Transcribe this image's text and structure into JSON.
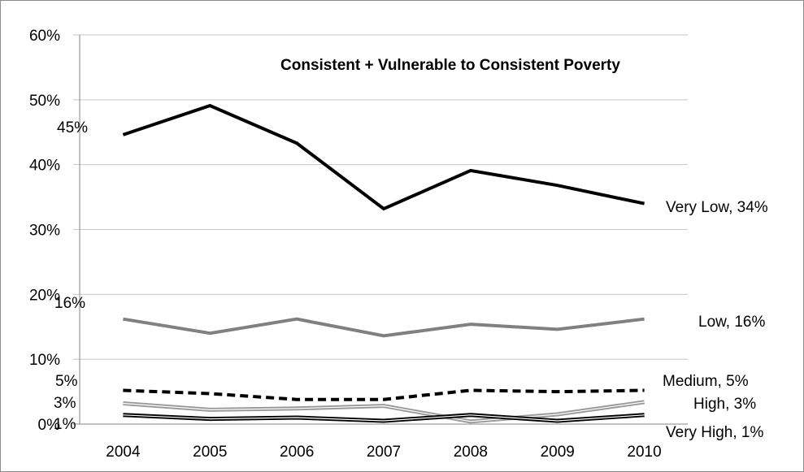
{
  "chart_data": {
    "type": "line",
    "title": "Consistent + Vulnerable to Consistent Poverty",
    "xlabel": "",
    "ylabel": "",
    "ylim": [
      0,
      60
    ],
    "y_ticks": [
      "0%",
      "10%",
      "20%",
      "30%",
      "40%",
      "50%",
      "60%"
    ],
    "categories": [
      "2004",
      "2005",
      "2006",
      "2007",
      "2008",
      "2009",
      "2010"
    ],
    "grid": "horizontal",
    "legend": "none",
    "series": [
      {
        "name": "Very Low",
        "values": [
          44.6,
          49.1,
          43.3,
          33.2,
          39.1,
          36.8,
          34.0
        ],
        "color": "#000000",
        "style": "solid",
        "width": 4,
        "start_label": "45%",
        "end_label": "Very Low, 34%"
      },
      {
        "name": "Low",
        "values": [
          16.2,
          14.0,
          16.2,
          13.6,
          15.4,
          14.6,
          16.2
        ],
        "color": "#808080",
        "style": "solid",
        "width": 4,
        "start_label": "16%",
        "end_label": "Low, 16%"
      },
      {
        "name": "Medium",
        "values": [
          5.2,
          4.7,
          3.8,
          3.8,
          5.2,
          5.0,
          5.2
        ],
        "color": "#000000",
        "style": "dashed",
        "width": 4,
        "start_label": "5%",
        "end_label": "Medium, 5%"
      },
      {
        "name": "High",
        "values": [
          3.2,
          2.2,
          2.4,
          2.8,
          0.4,
          1.5,
          3.4
        ],
        "color": "#999999",
        "style": "double",
        "width": 3,
        "start_label": "3%",
        "end_label": "High, 3%"
      },
      {
        "name": "Very High",
        "values": [
          1.4,
          0.8,
          1.0,
          0.5,
          1.4,
          0.5,
          1.4
        ],
        "color": "#000000",
        "style": "double",
        "width": 3,
        "start_label": "1%",
        "end_label": "Very High, 1%"
      }
    ]
  }
}
